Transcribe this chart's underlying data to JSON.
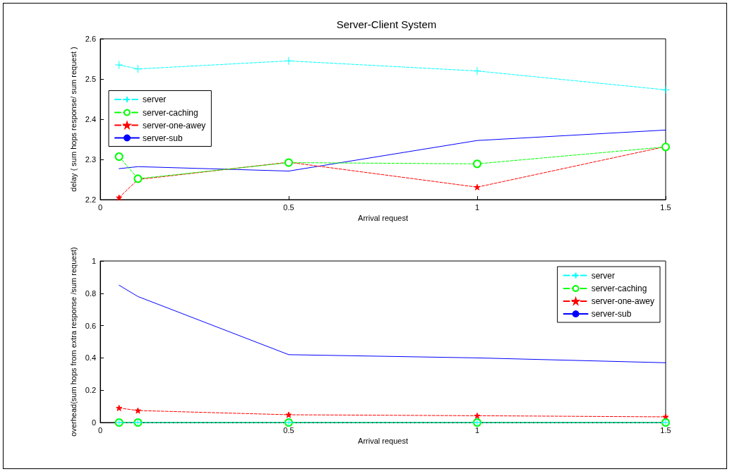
{
  "chart_data": [
    {
      "type": "line",
      "title": "Server-Client System",
      "xlabel": "Arrival request",
      "ylabel": "delay ( sum hops response/ sum request )",
      "x": [
        0.05,
        0.1,
        0.5,
        1,
        1.5
      ],
      "xlim": [
        0,
        1.5
      ],
      "xticks": [
        0,
        0.5,
        1,
        1.5
      ],
      "ylim": [
        2.2,
        2.6
      ],
      "yticks": [
        2.2,
        2.3,
        2.4,
        2.5,
        2.6
      ],
      "grid": false,
      "legend": "left",
      "series": [
        {
          "name": "server",
          "color": "#00ffff",
          "marker": "cross",
          "line_style": "dashed",
          "values": [
            2.535,
            2.525,
            2.545,
            2.52,
            2.473
          ]
        },
        {
          "name": "server-caching",
          "color": "#00ff00",
          "marker": "circle",
          "line_style": "dashed",
          "values": [
            2.307,
            2.252,
            2.292,
            2.289,
            2.331
          ]
        },
        {
          "name": "server-one-awey",
          "color": "#ff0000",
          "marker": "star",
          "line_style": "dashed",
          "values": [
            2.205,
            2.25,
            2.293,
            2.231,
            2.332
          ]
        },
        {
          "name": "server-sub",
          "color": "#0000ff",
          "marker": "none",
          "line_style": "solid",
          "values": [
            2.277,
            2.282,
            2.271,
            2.347,
            2.373
          ]
        }
      ]
    },
    {
      "type": "line",
      "xlabel": "Arrival request",
      "ylabel": "overhead(sum hops from extra response /sum request)",
      "x": [
        0.05,
        0.1,
        0.5,
        1,
        1.5
      ],
      "xlim": [
        0,
        1.5
      ],
      "xticks": [
        0,
        0.5,
        1,
        1.5
      ],
      "ylim": [
        0,
        1
      ],
      "yticks": [
        0,
        0.2,
        0.4,
        0.6,
        0.8,
        1
      ],
      "grid": false,
      "legend": "top right",
      "series": [
        {
          "name": "server",
          "color": "#00ffff",
          "marker": "cross",
          "line_style": "dashed",
          "values": [
            0,
            0,
            0,
            0,
            0
          ]
        },
        {
          "name": "server-caching",
          "color": "#00ff00",
          "marker": "circle",
          "line_style": "dashed",
          "values": [
            0,
            0,
            0,
            0,
            0
          ]
        },
        {
          "name": "server-one-awey",
          "color": "#ff0000",
          "marker": "star",
          "line_style": "dashed",
          "values": [
            0.09,
            0.074,
            0.048,
            0.042,
            0.035
          ]
        },
        {
          "name": "server-sub",
          "color": "#0000ff",
          "marker": "none",
          "line_style": "solid",
          "values": [
            0.85,
            0.78,
            0.42,
            0.4,
            0.37
          ]
        }
      ]
    }
  ]
}
